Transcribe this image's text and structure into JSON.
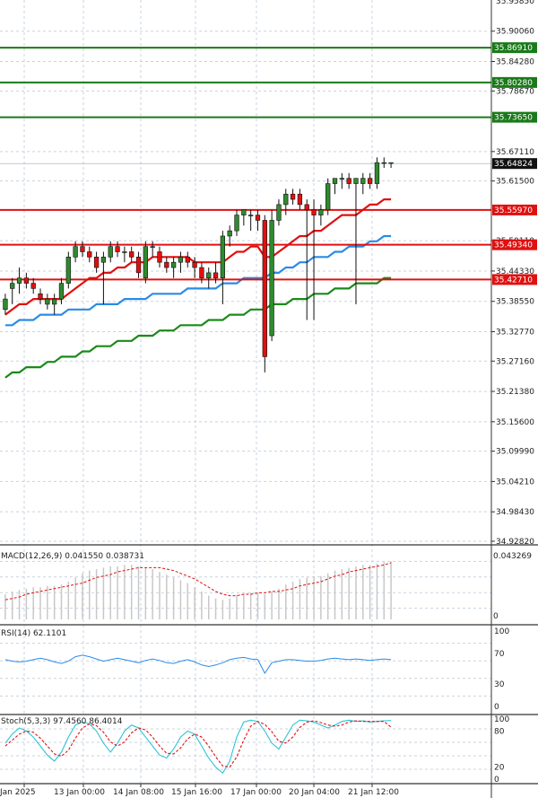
{
  "chart_data": [
    {
      "type": "candlestick",
      "price_axis": {
        "ticks": [
          34.9282,
          34.9843,
          35.0421,
          35.0999,
          35.156,
          35.2138,
          35.2716,
          35.3277,
          35.3855,
          35.4433,
          35.5011,
          35.615,
          35.6711,
          35.7865,
          35.8428,
          35.9006
        ],
        "tick_labels": [
          "34.92820",
          "34.98430",
          "35.04210",
          "35.09990",
          "35.15600",
          "35.21380",
          "35.27160",
          "35.32770",
          "35.38550",
          "35.44330",
          "35.50110",
          "35.61500",
          "35.67110",
          "35.78670",
          "35.84280",
          "35.90060"
        ],
        "top_partial_label": "35.95850",
        "range": [
          34.923,
          35.96
        ]
      },
      "horizontal_levels": [
        {
          "value": 35.8691,
          "label": "35.86910",
          "color": "#1a7a1a"
        },
        {
          "value": 35.8028,
          "label": "35.80280",
          "color": "#1a7a1a"
        },
        {
          "value": 35.7365,
          "label": "35.73650",
          "color": "#1a7a1a"
        },
        {
          "value": 35.5597,
          "label": "35.55970",
          "color": "#e01010"
        },
        {
          "value": 35.4934,
          "label": "35.49340",
          "color": "#e01010"
        },
        {
          "value": 35.4271,
          "label": "35.42710",
          "color": "#e01010"
        }
      ],
      "current_price": {
        "value": 35.64824,
        "label": "35.64824"
      },
      "candles": [
        [
          35.37,
          35.4,
          35.36,
          35.39
        ],
        [
          35.41,
          35.43,
          35.38,
          35.42
        ],
        [
          35.42,
          35.45,
          35.4,
          35.43
        ],
        [
          35.43,
          35.44,
          35.41,
          35.42
        ],
        [
          35.42,
          35.43,
          35.4,
          35.41
        ],
        [
          35.4,
          35.41,
          35.38,
          35.39
        ],
        [
          35.38,
          35.4,
          35.37,
          35.39
        ],
        [
          35.38,
          35.4,
          35.36,
          35.39
        ],
        [
          35.39,
          35.43,
          35.38,
          35.42
        ],
        [
          35.42,
          35.48,
          35.41,
          35.47
        ],
        [
          35.47,
          35.5,
          35.46,
          35.49
        ],
        [
          35.49,
          35.5,
          35.47,
          35.48
        ],
        [
          35.48,
          35.49,
          35.46,
          35.47
        ],
        [
          35.47,
          35.48,
          35.44,
          35.45
        ],
        [
          35.46,
          35.48,
          35.38,
          35.47
        ],
        [
          35.47,
          35.5,
          35.46,
          35.49
        ],
        [
          35.49,
          35.5,
          35.47,
          35.48
        ],
        [
          35.48,
          35.49,
          35.46,
          35.48
        ],
        [
          35.48,
          35.49,
          35.46,
          35.47
        ],
        [
          35.47,
          35.48,
          35.43,
          35.44
        ],
        [
          35.43,
          35.5,
          35.42,
          35.49
        ],
        [
          35.49,
          35.5,
          35.47,
          35.49
        ],
        [
          35.48,
          35.49,
          35.45,
          35.46
        ],
        [
          35.46,
          35.47,
          35.44,
          35.45
        ],
        [
          35.45,
          35.47,
          35.43,
          35.46
        ],
        [
          35.46,
          35.48,
          35.44,
          35.47
        ],
        [
          35.47,
          35.48,
          35.45,
          35.46
        ],
        [
          35.46,
          35.47,
          35.43,
          35.45
        ],
        [
          35.45,
          35.46,
          35.42,
          35.43
        ],
        [
          35.43,
          35.45,
          35.41,
          35.44
        ],
        [
          35.44,
          35.46,
          35.42,
          35.43
        ],
        [
          35.43,
          35.52,
          35.38,
          35.51
        ],
        [
          35.51,
          35.53,
          35.49,
          35.52
        ],
        [
          35.52,
          35.56,
          35.51,
          35.55
        ],
        [
          35.55,
          35.56,
          35.53,
          35.56
        ],
        [
          35.55,
          35.56,
          35.52,
          35.55
        ],
        [
          35.55,
          35.56,
          35.52,
          35.54
        ],
        [
          35.54,
          35.55,
          35.25,
          35.28
        ],
        [
          35.32,
          35.56,
          35.31,
          35.54
        ],
        [
          35.54,
          35.58,
          35.53,
          35.57
        ],
        [
          35.57,
          35.6,
          35.55,
          35.59
        ],
        [
          35.59,
          35.6,
          35.57,
          35.58
        ],
        [
          35.59,
          35.6,
          35.56,
          35.57
        ],
        [
          35.57,
          35.58,
          35.35,
          35.56
        ],
        [
          35.56,
          35.58,
          35.35,
          35.55
        ],
        [
          35.55,
          35.57,
          35.53,
          35.56
        ],
        [
          35.56,
          35.62,
          35.55,
          35.61
        ],
        [
          35.61,
          35.62,
          35.59,
          35.62
        ],
        [
          35.62,
          35.63,
          35.6,
          35.62
        ],
        [
          35.62,
          35.63,
          35.6,
          35.61
        ],
        [
          35.61,
          35.62,
          35.38,
          35.62
        ],
        [
          35.61,
          35.63,
          35.59,
          35.62
        ],
        [
          35.62,
          35.63,
          35.6,
          35.61
        ],
        [
          35.61,
          35.66,
          35.6,
          35.65
        ],
        [
          35.65,
          35.66,
          35.64,
          35.65
        ],
        [
          35.65,
          35.65,
          35.64,
          35.65
        ]
      ],
      "ma_fast": [
        35.36,
        35.37,
        35.38,
        35.38,
        35.39,
        35.39,
        35.39,
        35.39,
        35.39,
        35.4,
        35.41,
        35.42,
        35.43,
        35.43,
        35.44,
        35.44,
        35.45,
        35.45,
        35.46,
        35.46,
        35.46,
        35.47,
        35.47,
        35.47,
        35.47,
        35.47,
        35.47,
        35.46,
        35.46,
        35.46,
        35.46,
        35.46,
        35.47,
        35.48,
        35.48,
        35.49,
        35.49,
        35.47,
        35.47,
        35.48,
        35.49,
        35.5,
        35.51,
        35.51,
        35.52,
        35.52,
        35.53,
        35.54,
        35.55,
        35.55,
        35.55,
        35.56,
        35.57,
        35.57,
        35.58,
        35.58
      ],
      "ma_mid": [
        35.34,
        35.34,
        35.35,
        35.35,
        35.35,
        35.36,
        35.36,
        35.36,
        35.36,
        35.37,
        35.37,
        35.37,
        35.37,
        35.38,
        35.38,
        35.38,
        35.38,
        35.39,
        35.39,
        35.39,
        35.39,
        35.4,
        35.4,
        35.4,
        35.4,
        35.4,
        35.41,
        35.41,
        35.41,
        35.41,
        35.41,
        35.42,
        35.42,
        35.42,
        35.43,
        35.43,
        35.43,
        35.43,
        35.44,
        35.44,
        35.45,
        35.45,
        35.46,
        35.46,
        35.47,
        35.47,
        35.47,
        35.48,
        35.48,
        35.49,
        35.49,
        35.49,
        35.5,
        35.5,
        35.51,
        35.51
      ],
      "ma_slow": [
        35.24,
        35.25,
        35.25,
        35.26,
        35.26,
        35.26,
        35.27,
        35.27,
        35.28,
        35.28,
        35.28,
        35.29,
        35.29,
        35.3,
        35.3,
        35.3,
        35.31,
        35.31,
        35.31,
        35.32,
        35.32,
        35.32,
        35.33,
        35.33,
        35.33,
        35.34,
        35.34,
        35.34,
        35.34,
        35.35,
        35.35,
        35.35,
        35.36,
        35.36,
        35.36,
        35.37,
        35.37,
        35.37,
        35.38,
        35.38,
        35.38,
        35.39,
        35.39,
        35.39,
        35.4,
        35.4,
        35.4,
        35.41,
        35.41,
        35.41,
        35.42,
        35.42,
        35.42,
        35.42,
        35.43,
        35.43
      ],
      "x_labels": [
        "Jan 2025",
        "13 Jan 00:00",
        "14 Jan 08:00",
        "15 Jan 16:00",
        "17 Jan 00:00",
        "20 Jan 04:00",
        "21 Jan 12:00"
      ],
      "grid": true,
      "colors": {
        "up": "#2e8b2e",
        "down": "#e01010",
        "ma_fast": "#e01010",
        "ma_mid": "#2a8be6",
        "ma_slow": "#1a8a1a"
      }
    },
    {
      "type": "bar",
      "title": "MACD(12,26,9) 0.041550 0.038731",
      "y_tick_labels": [
        "0.043269",
        "0"
      ],
      "ylim": [
        0,
        0.045
      ],
      "histogram": [
        0.018,
        0.02,
        0.021,
        0.022,
        0.023,
        0.023,
        0.024,
        0.024,
        0.025,
        0.027,
        0.03,
        0.033,
        0.035,
        0.036,
        0.037,
        0.038,
        0.038,
        0.039,
        0.039,
        0.038,
        0.037,
        0.036,
        0.034,
        0.032,
        0.03,
        0.028,
        0.026,
        0.023,
        0.02,
        0.017,
        0.015,
        0.014,
        0.015,
        0.017,
        0.018,
        0.019,
        0.019,
        0.018,
        0.02,
        0.022,
        0.025,
        0.027,
        0.029,
        0.03,
        0.031,
        0.031,
        0.033,
        0.035,
        0.036,
        0.037,
        0.038,
        0.039,
        0.039,
        0.04,
        0.041,
        0.0416
      ],
      "signal": [
        0.014,
        0.015,
        0.016,
        0.018,
        0.019,
        0.02,
        0.021,
        0.022,
        0.023,
        0.024,
        0.025,
        0.026,
        0.028,
        0.03,
        0.031,
        0.032,
        0.034,
        0.035,
        0.036,
        0.037,
        0.037,
        0.037,
        0.037,
        0.036,
        0.035,
        0.033,
        0.031,
        0.029,
        0.026,
        0.023,
        0.02,
        0.018,
        0.017,
        0.017,
        0.018,
        0.018,
        0.019,
        0.019,
        0.02,
        0.02,
        0.021,
        0.022,
        0.024,
        0.025,
        0.026,
        0.027,
        0.029,
        0.031,
        0.032,
        0.034,
        0.035,
        0.036,
        0.037,
        0.038,
        0.039,
        0.0405
      ],
      "colors": {
        "histogram": "#c8c8c8",
        "signal": "#e01010"
      }
    },
    {
      "type": "line",
      "title": "RSI(14) 62.1101",
      "y_tick_labels": [
        "100",
        "70",
        "30",
        "0"
      ],
      "ylim": [
        0,
        100
      ],
      "values": [
        62,
        60,
        59,
        60,
        62,
        64,
        62,
        59,
        57,
        60,
        66,
        68,
        66,
        63,
        60,
        62,
        64,
        62,
        60,
        58,
        61,
        63,
        61,
        58,
        57,
        60,
        62,
        59,
        55,
        53,
        55,
        58,
        62,
        64,
        65,
        63,
        62,
        44,
        58,
        60,
        62,
        62,
        61,
        60,
        60,
        61,
        63,
        64,
        63,
        62,
        63,
        62,
        61,
        62,
        63,
        62
      ],
      "colors": {
        "line": "#2a8be6"
      }
    },
    {
      "type": "line",
      "title": "Stoch(5,3,3) 97.4560 86.4014",
      "y_tick_labels": [
        "100",
        "80",
        "20",
        "0"
      ],
      "ylim": [
        0,
        100
      ],
      "series": [
        {
          "values": [
            60,
            75,
            85,
            80,
            70,
            55,
            40,
            30,
            45,
            70,
            90,
            95,
            92,
            80,
            60,
            45,
            60,
            80,
            90,
            85,
            70,
            55,
            40,
            35,
            50,
            70,
            80,
            75,
            55,
            35,
            20,
            10,
            30,
            70,
            95,
            98,
            96,
            80,
            60,
            50,
            70,
            90,
            98,
            97,
            95,
            90,
            85,
            90,
            96,
            98,
            96,
            97,
            95,
            96,
            97,
            97.5
          ],
          "color": "#2ec4d6"
        },
        {
          "values": [
            55,
            65,
            75,
            80,
            78,
            68,
            55,
            42,
            38,
            48,
            68,
            85,
            92,
            89,
            78,
            62,
            55,
            62,
            77,
            85,
            82,
            70,
            55,
            43,
            42,
            52,
            67,
            75,
            70,
            55,
            37,
            22,
            20,
            37,
            65,
            88,
            96,
            91,
            79,
            63,
            60,
            70,
            86,
            95,
            97,
            94,
            90,
            88,
            90,
            95,
            97,
            96,
            96,
            96,
            96,
            86.4
          ],
          "color": "#e01010"
        }
      ]
    }
  ]
}
